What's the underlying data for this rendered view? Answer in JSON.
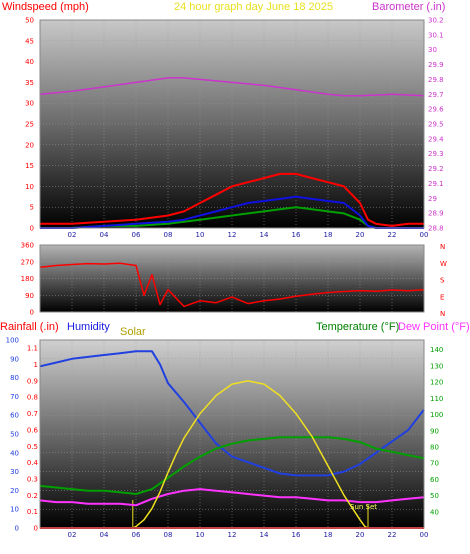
{
  "header": {
    "left_title": "Windspeed (mph)",
    "center_title": "24 hour graph day   June 18 2025",
    "right_title": "Barometer (.in)"
  },
  "colors": {
    "wind": "#ff0000",
    "gust": "#ff0000",
    "wind_avg": "#00a000",
    "wind_blue": "#1010e0",
    "barometer": "#cc33cc",
    "direction": "#ff0000",
    "humidity": "#2040e0",
    "temperature": "#00a000",
    "dew_point": "#ff33ff",
    "solar": "#f0e020",
    "rain": "#ff0000",
    "left_axis": "#ff0000",
    "right_axis": "#cc33cc",
    "time_axis": "#1a1aa0"
  },
  "chart_data": [
    {
      "type": "line",
      "id": "wind_baro",
      "title": "24 hour graph day   June 18 2025",
      "x_ticks": [
        "02",
        "04",
        "06",
        "08",
        "10",
        "12",
        "14",
        "16",
        "18",
        "20",
        "22",
        "00"
      ],
      "left_axis": {
        "label": "Windspeed (mph)",
        "range": [
          0,
          50
        ],
        "ticks": [
          "0",
          "5",
          "10",
          "15",
          "20",
          "25",
          "30",
          "35",
          "40",
          "45",
          "50"
        ]
      },
      "right_axis": {
        "label": "Barometer (.in)",
        "range": [
          28.8,
          30.2
        ],
        "ticks": [
          "28.8",
          "28.9",
          "29",
          "29.1",
          "29.2",
          "29.3",
          "29.4",
          "29.5",
          "29.6",
          "29.7",
          "29.8",
          "29.9",
          "30",
          "30.1",
          "30.2"
        ]
      },
      "grid": true,
      "series": [
        {
          "key": "barometer",
          "axis": "right",
          "x": [
            0,
            2,
            4,
            6,
            8,
            9,
            10,
            12,
            14,
            16,
            18,
            19,
            20,
            22,
            24
          ],
          "values": [
            29.7,
            29.72,
            29.75,
            29.78,
            29.81,
            29.81,
            29.8,
            29.78,
            29.76,
            29.73,
            29.7,
            29.69,
            29.69,
            29.7,
            29.69
          ]
        },
        {
          "key": "gust",
          "axis": "left",
          "x": [
            0,
            2,
            4,
            6,
            8,
            9,
            10,
            11,
            12,
            13,
            14,
            15,
            16,
            17,
            18,
            19,
            20,
            20.5,
            21,
            22,
            23,
            24
          ],
          "values": [
            1,
            1,
            1.5,
            2,
            3,
            4,
            6,
            8,
            10,
            11,
            12,
            13,
            13,
            12,
            11,
            10,
            6,
            2,
            1,
            0.5,
            1,
            1
          ]
        },
        {
          "key": "wind_avg",
          "axis": "left",
          "x": [
            0,
            2,
            4,
            6,
            8,
            9,
            10,
            11,
            12,
            13,
            14,
            15,
            16,
            17,
            18,
            19,
            20,
            20.5,
            21,
            22,
            23,
            24
          ],
          "values": [
            0,
            0,
            0.5,
            0.5,
            1,
            1.5,
            2,
            2.5,
            3,
            3.5,
            4,
            4.5,
            5,
            4.5,
            4,
            3.5,
            2,
            0.5,
            0,
            0,
            0,
            0
          ]
        },
        {
          "key": "wind_blue",
          "axis": "left",
          "x": [
            0,
            2,
            4,
            6,
            8,
            9,
            10,
            11,
            12,
            13,
            14,
            15,
            16,
            17,
            18,
            19,
            20,
            20.5,
            21,
            22,
            23,
            24
          ],
          "values": [
            0,
            0,
            0.5,
            1,
            1.5,
            2,
            3,
            4,
            5,
            6,
            6.5,
            7,
            7.5,
            7,
            6.5,
            6,
            3,
            0.5,
            0,
            0,
            0,
            0
          ]
        }
      ]
    },
    {
      "type": "line",
      "id": "direction",
      "x_ticks": [],
      "left_axis": {
        "range": [
          0,
          360
        ],
        "ticks": [
          "0",
          "90",
          "180",
          "270",
          "360"
        ]
      },
      "right_axis": {
        "ticks": [
          "N",
          "W",
          "S",
          "E",
          "N"
        ]
      },
      "grid": true,
      "series": [
        {
          "key": "direction",
          "axis": "left",
          "x": [
            0,
            1,
            2,
            3,
            4,
            5,
            6,
            6.5,
            7,
            7.5,
            8,
            9,
            10,
            11,
            12,
            13,
            14,
            15,
            16,
            17,
            18,
            19,
            20,
            21,
            22,
            23,
            24
          ],
          "values": [
            240,
            250,
            255,
            260,
            258,
            262,
            250,
            90,
            200,
            40,
            120,
            30,
            60,
            50,
            80,
            45,
            60,
            70,
            85,
            95,
            105,
            110,
            115,
            112,
            118,
            114,
            120
          ]
        }
      ]
    },
    {
      "type": "line",
      "id": "rain_humidity_temp",
      "x_ticks": [
        "02",
        "04",
        "06",
        "08",
        "10",
        "12",
        "14",
        "16",
        "18",
        "20",
        "22",
        "00"
      ],
      "labels": {
        "rainfall": "Rainfall (.in)",
        "humidity": "Humidity",
        "solar": "Solar",
        "temperature": "Temperature (°F)",
        "dew_point": "Dew Point (°F)",
        "sunset": "Sun Set"
      },
      "left_axis_rain": {
        "range": [
          0,
          1.15
        ],
        "ticks": [
          "0",
          "0.1",
          "0.2",
          "0.3",
          "0.4",
          "0.5",
          "0.6",
          "0.7",
          "0.8",
          "0.9",
          "1",
          "1.1"
        ]
      },
      "left_axis_humidity": {
        "range": [
          0,
          100
        ],
        "ticks": [
          "0",
          "10",
          "20",
          "30",
          "40",
          "50",
          "60",
          "70",
          "80",
          "90",
          "100"
        ]
      },
      "right_axis": {
        "range": [
          30,
          146
        ],
        "ticks": [
          "40",
          "50",
          "60",
          "70",
          "80",
          "90",
          "100",
          "110",
          "120",
          "130",
          "140"
        ]
      },
      "grid": true,
      "series": [
        {
          "key": "humidity",
          "axis": "humidity",
          "x": [
            0,
            1,
            2,
            3,
            4,
            5,
            6,
            7,
            7.5,
            8,
            9,
            10,
            11,
            12,
            13,
            14,
            15,
            16,
            17,
            18,
            19,
            20,
            21,
            22,
            23,
            24
          ],
          "values": [
            86,
            88,
            90,
            91,
            92,
            93,
            94,
            94,
            87,
            77,
            67,
            56,
            45,
            38,
            35,
            32,
            29,
            28,
            28,
            28,
            30,
            34,
            40,
            46,
            52,
            63
          ]
        },
        {
          "key": "temperature",
          "axis": "right",
          "x": [
            0,
            1,
            2,
            3,
            4,
            5,
            6,
            7,
            8,
            9,
            10,
            11,
            12,
            13,
            14,
            15,
            16,
            17,
            18,
            19,
            20,
            21,
            22,
            23,
            24
          ],
          "values": [
            56,
            55,
            54,
            53,
            53,
            52,
            51,
            54,
            61,
            68,
            74,
            79,
            82,
            84,
            85,
            86,
            86,
            86,
            86,
            85,
            83,
            79,
            77,
            75,
            73
          ]
        },
        {
          "key": "dew_point",
          "axis": "right",
          "x": [
            0,
            1,
            2,
            3,
            4,
            5,
            6,
            7,
            8,
            9,
            10,
            11,
            12,
            13,
            14,
            15,
            16,
            17,
            18,
            19,
            20,
            21,
            22,
            23,
            24
          ],
          "values": [
            47,
            46,
            46,
            45,
            45,
            45,
            44,
            48,
            51,
            53,
            54,
            53,
            52,
            51,
            50,
            49,
            49,
            48,
            47,
            47,
            46,
            46,
            47,
            48,
            49
          ]
        },
        {
          "key": "solar",
          "axis": "rain",
          "x": [
            5.8,
            6,
            6.5,
            7,
            7.5,
            8,
            8.5,
            9,
            10,
            11,
            12,
            13,
            14,
            15,
            16,
            17,
            18,
            19,
            20,
            20.3,
            20.5
          ],
          "values": [
            0,
            0.01,
            0.05,
            0.12,
            0.22,
            0.34,
            0.45,
            0.55,
            0.7,
            0.81,
            0.88,
            0.9,
            0.88,
            0.81,
            0.7,
            0.56,
            0.38,
            0.2,
            0.05,
            0.01,
            0
          ]
        },
        {
          "key": "rain",
          "axis": "rain",
          "x": [
            0,
            24
          ],
          "values": [
            0,
            0
          ]
        }
      ]
    }
  ]
}
